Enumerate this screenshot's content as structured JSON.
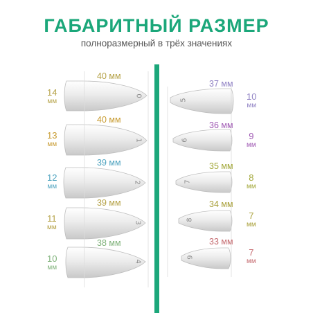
{
  "header": {
    "title": "ГАБАРИТНЫЙ РАЗМЕР",
    "subtitle": "полноразмерный в трёх значениях"
  },
  "colors": {
    "accent_green": "#1ba77a",
    "size_0": "#b5a247",
    "size_1": "#c79a2e",
    "size_2": "#4ea3bf",
    "size_3": "#b5a247",
    "size_4": "#7fb27a",
    "size_5": "#9082c4",
    "size_6": "#a05ab4",
    "size_7": "#a3a83a",
    "size_8": "#a9a03a",
    "size_9": "#c56a6f"
  },
  "left_column": [
    {
      "number": "0",
      "width": "40 мм",
      "size": "14",
      "unit": "мм",
      "color_key": "size_0"
    },
    {
      "number": "1",
      "width": "40 мм",
      "size": "13",
      "unit": "мм",
      "color_key": "size_1"
    },
    {
      "number": "2",
      "width": "39 мм",
      "size": "12",
      "unit": "мм",
      "color_key": "size_2"
    },
    {
      "number": "3",
      "width": "39 мм",
      "size": "11",
      "unit": "мм",
      "color_key": "size_3"
    },
    {
      "number": "4",
      "width": "38 мм",
      "size": "10",
      "unit": "мм",
      "color_key": "size_4"
    }
  ],
  "right_column": [
    {
      "number": "5",
      "width": "37 мм",
      "size": "10",
      "unit": "мм",
      "color_key": "size_5"
    },
    {
      "number": "6",
      "width": "36 мм",
      "size": "9",
      "unit": "мм",
      "color_key": "size_6"
    },
    {
      "number": "7",
      "width": "35 мм",
      "size": "8",
      "unit": "мм",
      "color_key": "size_7"
    },
    {
      "number": "8",
      "width": "34 мм",
      "size": "7",
      "unit": "мм",
      "color_key": "size_8"
    },
    {
      "number": "9",
      "width": "33 мм",
      "size": "7",
      "unit": "мм",
      "color_key": "size_9"
    }
  ]
}
